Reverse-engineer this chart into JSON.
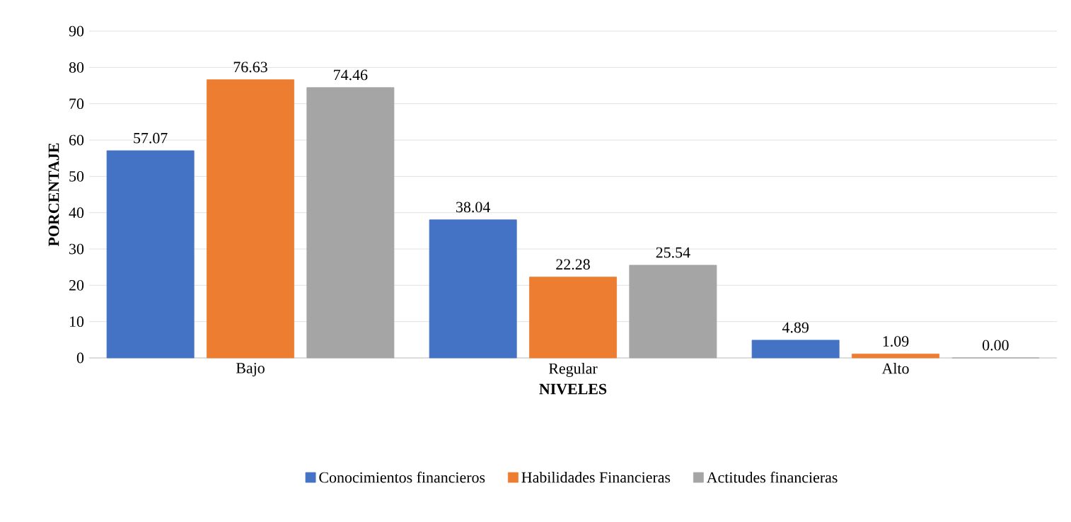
{
  "chart_data": {
    "type": "bar",
    "xlabel": "NIVELES",
    "ylabel": "PORCENTAJE",
    "categories": [
      "Bajo",
      "Regular",
      "Alto"
    ],
    "series": [
      {
        "name": "Conocimientos financieros",
        "color": "#4472c4",
        "values": [
          57.07,
          38.04,
          4.89
        ],
        "value_labels": [
          "57.07",
          "38.04",
          "4.89"
        ]
      },
      {
        "name": "Habilidades Financieras",
        "color": "#ed7d31",
        "values": [
          76.63,
          22.28,
          1.09
        ],
        "value_labels": [
          "76.63",
          "22.28",
          "1.09"
        ]
      },
      {
        "name": "Actitudes financieras",
        "color": "#a5a5a5",
        "values": [
          74.46,
          25.54,
          0
        ],
        "value_labels": [
          "74.46",
          "25.54",
          "0.00"
        ]
      }
    ],
    "ylim": [
      0,
      90
    ],
    "yticks": [
      0,
      10,
      20,
      30,
      40,
      50,
      60,
      70,
      80,
      90
    ],
    "grid": "y",
    "legend": "bottom"
  }
}
